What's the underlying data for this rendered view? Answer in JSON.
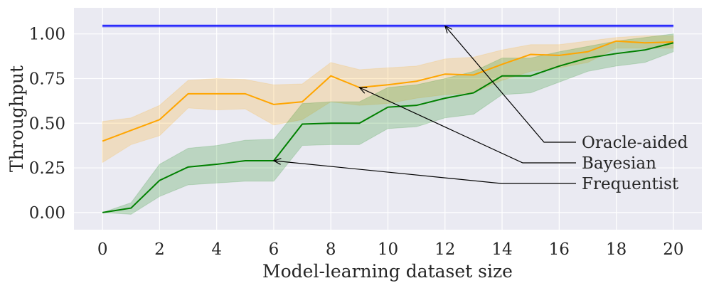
{
  "chart_data": {
    "type": "line",
    "title": "",
    "xlabel": "Model-learning dataset size",
    "ylabel": "Throughput",
    "xlim": [
      -1,
      21
    ],
    "ylim": [
      -0.096,
      1.146
    ],
    "xticks": [
      0,
      2,
      4,
      6,
      8,
      10,
      12,
      14,
      16,
      18,
      20
    ],
    "yticks": [
      "0.00",
      "0.25",
      "0.50",
      "0.75",
      "1.00"
    ],
    "grid": true,
    "legend": "none (arrow annotations at right)",
    "x": [
      0,
      1,
      2,
      3,
      4,
      5,
      6,
      7,
      8,
      9,
      10,
      11,
      12,
      13,
      14,
      15,
      16,
      17,
      18,
      19,
      20
    ],
    "series": [
      {
        "name": "Oracle-aided",
        "color": "#0000ff",
        "values": [
          1.045,
          1.045,
          1.045,
          1.045,
          1.045,
          1.045,
          1.045,
          1.045,
          1.045,
          1.045,
          1.045,
          1.045,
          1.045,
          1.045,
          1.045,
          1.045,
          1.045,
          1.045,
          1.045,
          1.045,
          1.045
        ],
        "lower": [
          1.037,
          1.037,
          1.037,
          1.037,
          1.037,
          1.037,
          1.037,
          1.037,
          1.037,
          1.037,
          1.037,
          1.037,
          1.037,
          1.037,
          1.037,
          1.037,
          1.037,
          1.037,
          1.037,
          1.037,
          1.037
        ],
        "upper": [
          1.052,
          1.052,
          1.052,
          1.052,
          1.052,
          1.052,
          1.052,
          1.052,
          1.052,
          1.052,
          1.052,
          1.052,
          1.052,
          1.052,
          1.052,
          1.052,
          1.052,
          1.052,
          1.052,
          1.052,
          1.052
        ]
      },
      {
        "name": "Bayesian",
        "color": "#ffa500",
        "values": [
          0.4,
          0.46,
          0.52,
          0.665,
          0.665,
          0.665,
          0.605,
          0.62,
          0.765,
          0.7,
          0.715,
          0.735,
          0.775,
          0.77,
          0.83,
          0.885,
          0.88,
          0.9,
          0.96,
          0.95,
          0.955
        ],
        "lower": [
          0.28,
          0.38,
          0.43,
          0.585,
          0.575,
          0.58,
          0.49,
          0.52,
          0.62,
          0.6,
          0.61,
          0.64,
          0.66,
          0.67,
          0.74,
          0.79,
          0.81,
          0.84,
          0.92,
          0.92,
          0.92
        ],
        "upper": [
          0.51,
          0.53,
          0.6,
          0.74,
          0.75,
          0.745,
          0.715,
          0.72,
          0.84,
          0.8,
          0.81,
          0.82,
          0.86,
          0.87,
          0.91,
          0.94,
          0.94,
          0.96,
          0.98,
          0.99,
          0.99
        ]
      },
      {
        "name": "Frequentist",
        "color": "#008000",
        "values": [
          0.0,
          0.025,
          0.18,
          0.255,
          0.27,
          0.29,
          0.29,
          0.495,
          0.5,
          0.5,
          0.59,
          0.6,
          0.64,
          0.67,
          0.765,
          0.765,
          0.82,
          0.865,
          0.89,
          0.91,
          0.95
        ],
        "lower": [
          0.0,
          -0.01,
          0.09,
          0.155,
          0.165,
          0.175,
          0.175,
          0.375,
          0.38,
          0.38,
          0.47,
          0.48,
          0.53,
          0.55,
          0.66,
          0.67,
          0.73,
          0.79,
          0.82,
          0.84,
          0.9
        ],
        "upper": [
          0.0,
          0.055,
          0.27,
          0.36,
          0.375,
          0.405,
          0.41,
          0.61,
          0.62,
          0.62,
          0.7,
          0.715,
          0.75,
          0.79,
          0.865,
          0.865,
          0.9,
          0.93,
          0.96,
          0.98,
          1.0
        ]
      }
    ],
    "annotations": [
      {
        "text": "Oracle-aided",
        "point": [
          12,
          1.045
        ]
      },
      {
        "text": "Bayesian",
        "point": [
          9,
          0.7
        ]
      },
      {
        "text": "Frequentist",
        "point": [
          6,
          0.29
        ]
      }
    ]
  }
}
